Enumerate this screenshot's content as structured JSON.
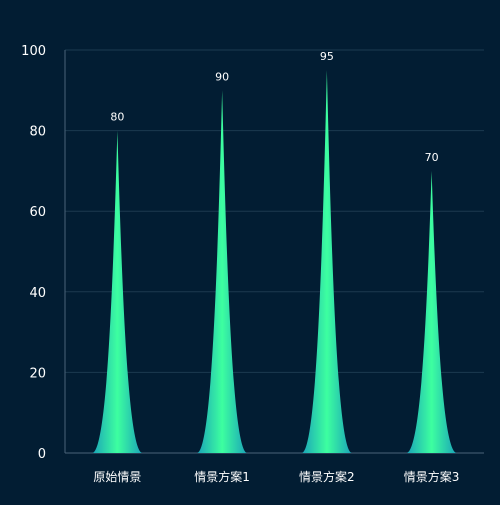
{
  "chart_data": {
    "type": "bar",
    "categories": [
      "原始情景",
      "情景方案1",
      "情景方案2",
      "情景方案3"
    ],
    "values": [
      80,
      90,
      95,
      70
    ],
    "title": "",
    "xlabel": "",
    "ylabel": "",
    "ylim": [
      0,
      100
    ],
    "yticks": [
      0,
      20,
      40,
      60,
      80,
      100
    ],
    "grid": true,
    "bar_shape": "pictorial-spike",
    "colors": {
      "background": "#021d33",
      "gridline": "#1c3a50",
      "axis_line": "#4a6478",
      "bar_center": "#3dffa0",
      "bar_edge": "#1aa3b8",
      "text": "#ffffff"
    }
  }
}
